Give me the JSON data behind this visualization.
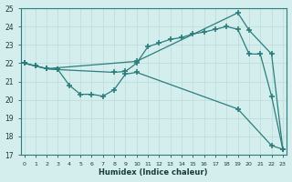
{
  "xlabel": "Humidex (Indice chaleur)",
  "bg_color": "#d4eeee",
  "line_color": "#2d7d7d",
  "grid_color": "#c0dede",
  "xlim": [
    -0.3,
    23.3
  ],
  "ylim": [
    17,
    25
  ],
  "yticks": [
    17,
    18,
    19,
    20,
    21,
    22,
    23,
    24,
    25
  ],
  "xticks": [
    0,
    1,
    2,
    3,
    4,
    5,
    6,
    7,
    8,
    9,
    10,
    11,
    12,
    13,
    14,
    15,
    16,
    17,
    18,
    19,
    20,
    21,
    22,
    23
  ],
  "line1_x": [
    0,
    1,
    2,
    10,
    19,
    20,
    22,
    23
  ],
  "line1_y": [
    22.0,
    21.85,
    21.7,
    22.1,
    24.75,
    23.8,
    22.5,
    17.3
  ],
  "line2_x": [
    0,
    1,
    2,
    3,
    8,
    9,
    10,
    11,
    12,
    13,
    14,
    15,
    16,
    17,
    18,
    19,
    20,
    21,
    22,
    23
  ],
  "line2_y": [
    22.0,
    21.85,
    21.7,
    21.65,
    21.5,
    21.55,
    22.0,
    22.9,
    23.1,
    23.3,
    23.4,
    23.6,
    23.7,
    23.85,
    24.0,
    23.85,
    22.5,
    22.5,
    20.2,
    17.3
  ],
  "line3_x": [
    0,
    1,
    2,
    3,
    4,
    5,
    6,
    7,
    8,
    9,
    10,
    19,
    22,
    23
  ],
  "line3_y": [
    22.0,
    21.85,
    21.7,
    21.65,
    20.8,
    20.3,
    20.3,
    20.2,
    20.55,
    21.4,
    21.5,
    19.5,
    17.5,
    17.3
  ]
}
